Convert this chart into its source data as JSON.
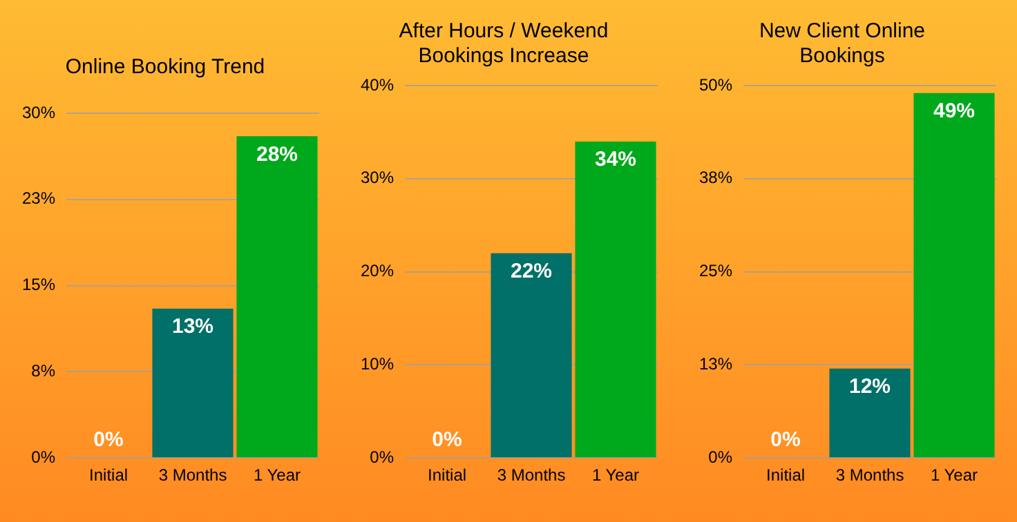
{
  "chart_data": [
    {
      "type": "bar",
      "title": "Online Booking Trend",
      "categories": [
        "Initial",
        "3 Months",
        "1 Year"
      ],
      "values": [
        0,
        13,
        28
      ],
      "colors": [
        "#8a8a8a",
        "#007068",
        "#00a81c"
      ],
      "value_labels": [
        "0%",
        "13%",
        "28%"
      ],
      "ylim": [
        0,
        30
      ],
      "yticks": [
        {
          "value": 0,
          "label": "0%"
        },
        {
          "value": 7.5,
          "label": "8%"
        },
        {
          "value": 15,
          "label": "15%"
        },
        {
          "value": 22.5,
          "label": "23%"
        },
        {
          "value": 30,
          "label": "30%"
        }
      ],
      "grid": "y",
      "legend": false
    },
    {
      "type": "bar",
      "title": "After Hours / Weekend Bookings Increase",
      "categories": [
        "Initial",
        "3 Months",
        "1 Year"
      ],
      "values": [
        0,
        22,
        34
      ],
      "colors": [
        "#8a8a8a",
        "#007068",
        "#00a81c"
      ],
      "value_labels": [
        "0%",
        "22%",
        "34%"
      ],
      "ylim": [
        0,
        40
      ],
      "yticks": [
        {
          "value": 0,
          "label": "0%"
        },
        {
          "value": 10,
          "label": "10%"
        },
        {
          "value": 20,
          "label": "20%"
        },
        {
          "value": 30,
          "label": "30%"
        },
        {
          "value": 40,
          "label": "40%"
        }
      ],
      "grid": "y",
      "legend": false
    },
    {
      "type": "bar",
      "title": "New Client Online Bookings",
      "categories": [
        "Initial",
        "3 Months",
        "1 Year"
      ],
      "values": [
        0,
        12,
        49
      ],
      "colors": [
        "#8a8a8a",
        "#007068",
        "#00a81c"
      ],
      "value_labels": [
        "0%",
        "12%",
        "49%"
      ],
      "ylim": [
        0,
        50
      ],
      "yticks": [
        {
          "value": 0,
          "label": "0%"
        },
        {
          "value": 12.5,
          "label": "13%"
        },
        {
          "value": 25,
          "label": "25%"
        },
        {
          "value": 37.5,
          "label": "38%"
        },
        {
          "value": 50,
          "label": "50%"
        }
      ],
      "grid": "y",
      "legend": false
    }
  ]
}
